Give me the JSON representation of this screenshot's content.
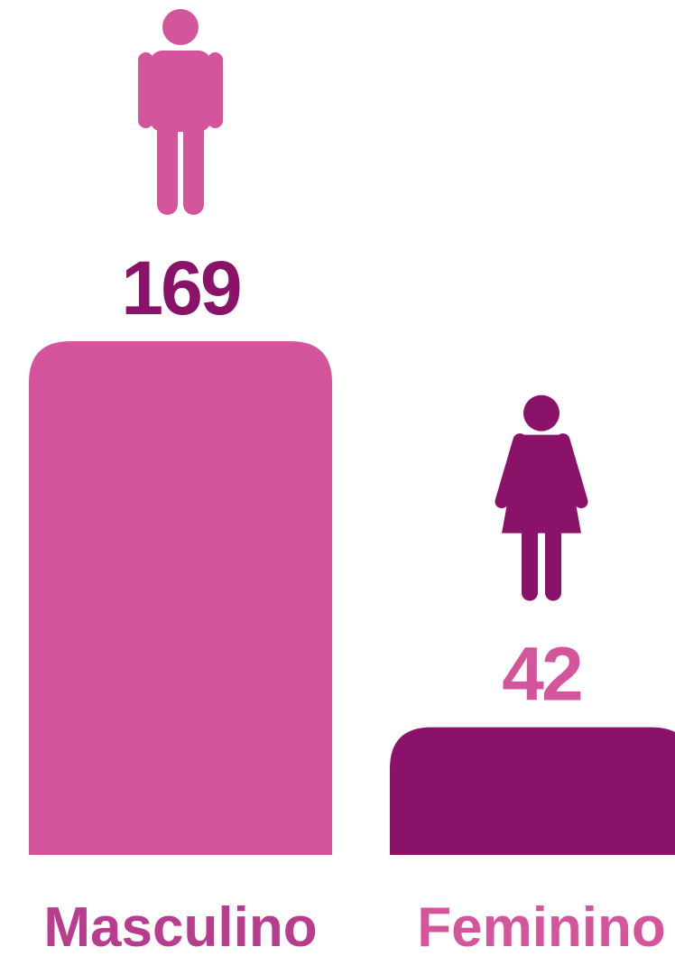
{
  "chart_data": {
    "type": "bar",
    "categories": [
      "Masculino",
      "Feminino"
    ],
    "values": [
      169,
      42
    ],
    "colors": [
      "#d4559c",
      "#8b1269"
    ],
    "value_label_colors": [
      "#8b1269",
      "#d4559c"
    ],
    "category_label_colors": [
      "#b83d8e",
      "#d4559c"
    ]
  }
}
